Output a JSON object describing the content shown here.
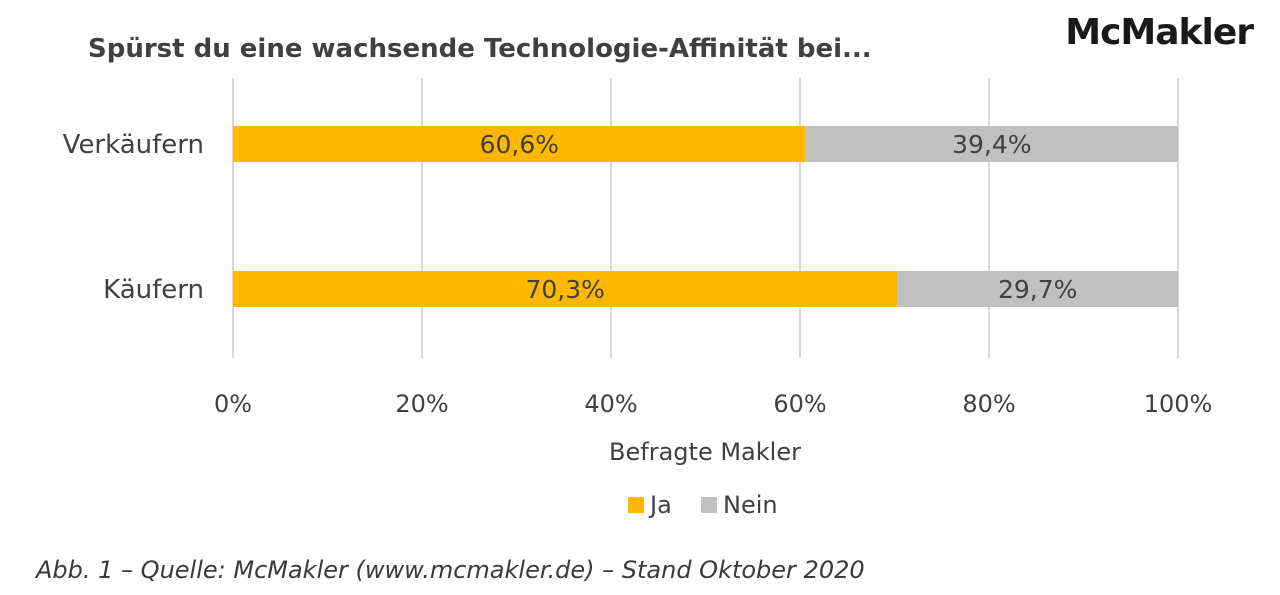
{
  "brand": "McMakler",
  "caption": "Abb. 1 – Quelle: McMakler (www.mcmakler.de) – Stand Oktober 2020",
  "colors": {
    "ja": "#FFB800",
    "nein": "#C0C0C0",
    "grid": "#D9D9D9",
    "text": "#404040"
  },
  "chart_data": {
    "type": "bar",
    "orientation": "horizontal",
    "stacked": true,
    "title": "Spürst du eine wachsende Technologie-Affinität bei...",
    "categories": [
      "Verkäufern",
      "Käufern"
    ],
    "series": [
      {
        "name": "Ja",
        "values": [
          60.6,
          70.3
        ],
        "labels": [
          "60,6%",
          "70,3%"
        ]
      },
      {
        "name": "Nein",
        "values": [
          39.4,
          29.7
        ],
        "labels": [
          "39,4%",
          "29,7%"
        ]
      }
    ],
    "xlabel": "Befragte Makler",
    "ylabel": "",
    "xlim": [
      0,
      100
    ],
    "xticks": [
      "0%",
      "20%",
      "40%",
      "60%",
      "80%",
      "100%"
    ],
    "grid": true,
    "legend": "bottom"
  }
}
